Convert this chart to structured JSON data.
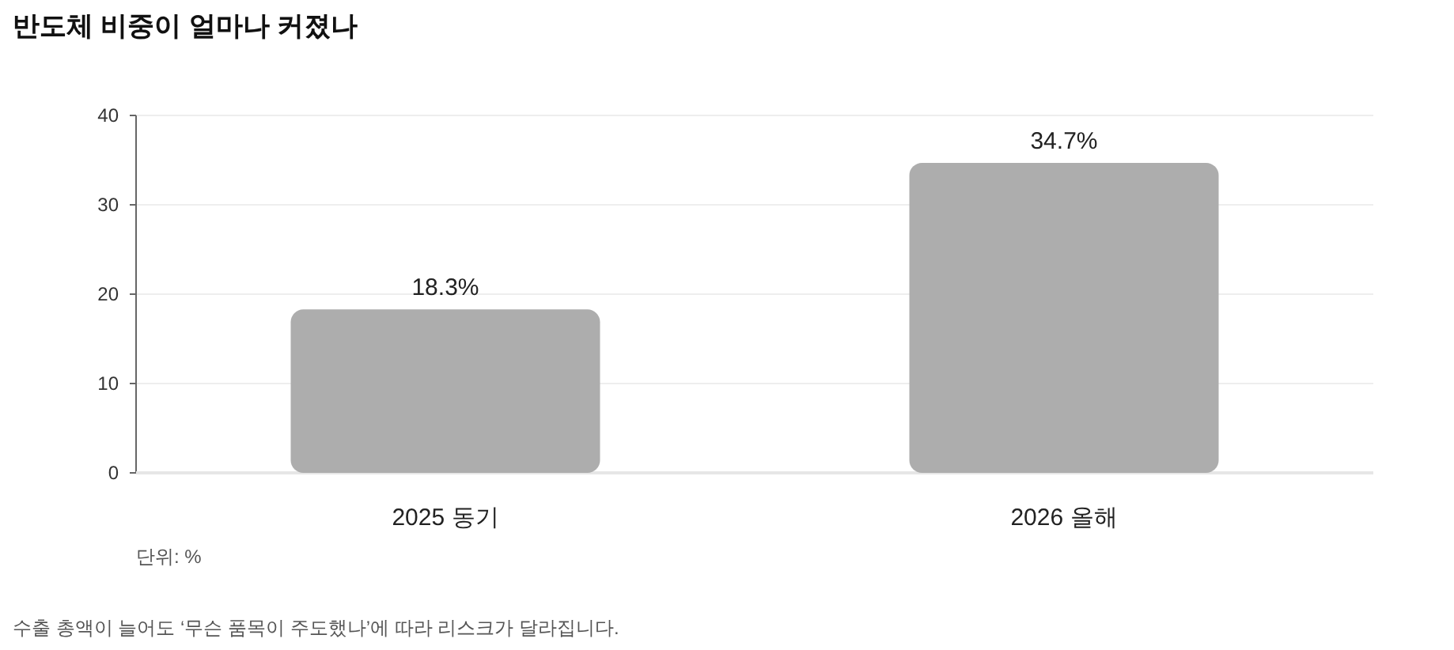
{
  "chart_data": {
    "type": "bar",
    "title": "반도체 비중이 얼마나 커졌나",
    "categories": [
      "2025 동기",
      "2026 올해"
    ],
    "values": [
      18.3,
      34.7
    ],
    "value_labels": [
      "18.3%",
      "34.7%"
    ],
    "color": "#adadad",
    "ylim": [
      0,
      40
    ],
    "yticks": [
      0,
      10,
      20,
      30,
      40
    ],
    "grid": "y",
    "annotations": [
      "단위: %",
      "수출 총액이 늘어도 ‘무슨 품목이 주도했나’에 따라 리스크가 달라집니다."
    ]
  }
}
